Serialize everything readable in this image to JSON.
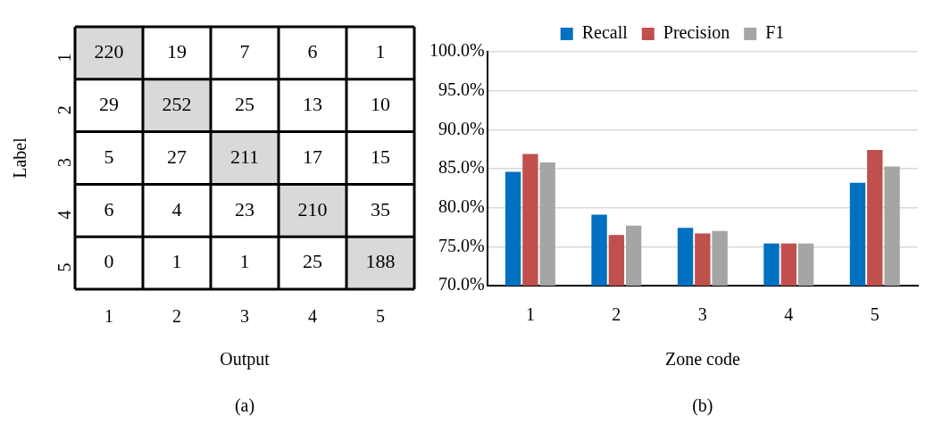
{
  "chart_data": [
    {
      "type": "heatmap",
      "xlabel": "Output",
      "ylabel": "Label",
      "categories": [
        "1",
        "2",
        "3",
        "4",
        "5"
      ],
      "y_categories": [
        "1",
        "2",
        "3",
        "4",
        "5"
      ],
      "colors": [
        "#ffffff",
        "#d9d9d9"
      ],
      "cells": [
        [
          220,
          19,
          7,
          6,
          1
        ],
        [
          29,
          252,
          25,
          13,
          10
        ],
        [
          5,
          27,
          211,
          17,
          15
        ],
        [
          6,
          4,
          23,
          210,
          35
        ],
        [
          0,
          1,
          1,
          25,
          188
        ]
      ],
      "data_labels": true,
      "annotations": [
        "(a)"
      ]
    },
    {
      "type": "bar",
      "xlabel": "Zone code",
      "categories": [
        "1",
        "2",
        "3",
        "4",
        "5"
      ],
      "series": [
        {
          "name": "Recall",
          "color": "#0070c0",
          "values": [
            84.6,
            79.1,
            77.4,
            75.4,
            83.2
          ]
        },
        {
          "name": "Precision",
          "color": "#c0504d",
          "values": [
            86.9,
            76.5,
            76.7,
            75.4,
            87.4
          ]
        },
        {
          "name": "F1",
          "color": "#a5a5a5",
          "values": [
            85.8,
            77.7,
            77.0,
            75.4,
            85.3
          ]
        }
      ],
      "ylim": [
        70,
        100
      ],
      "yticks": [
        {
          "value": 70,
          "label": "70.0%"
        },
        {
          "value": 75,
          "label": "75.0%"
        },
        {
          "value": 80,
          "label": "80.0%"
        },
        {
          "value": 85,
          "label": "85.0%"
        },
        {
          "value": 90,
          "label": "90.0%"
        },
        {
          "value": 95,
          "label": "95.0%"
        },
        {
          "value": 100,
          "label": "100.0%"
        }
      ],
      "grid": "y",
      "legend": "top",
      "annotations": [
        "(b)"
      ]
    }
  ]
}
